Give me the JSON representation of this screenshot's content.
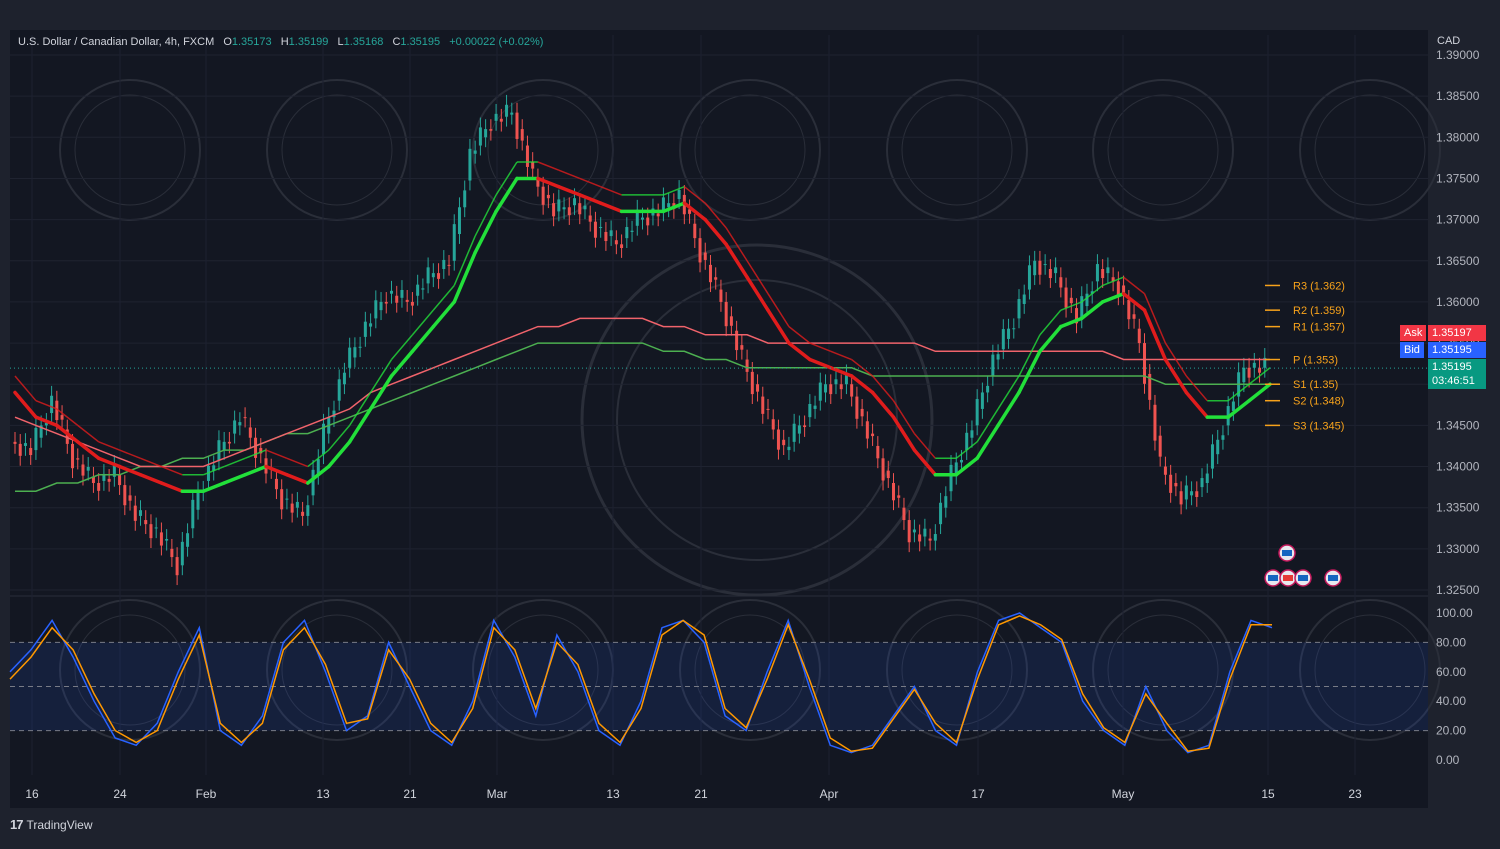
{
  "header": {
    "symbol": "U.S. Dollar / Canadian Dollar, 4h, FXCM",
    "o_label": "O",
    "o": "1.35173",
    "h_label": "H",
    "h": "1.35199",
    "l_label": "L",
    "l": "1.35168",
    "c_label": "C",
    "c": "1.35195",
    "change": "+0.00022 (+0.02%)"
  },
  "currency": "CAD",
  "footer": {
    "brand": "TradingView",
    "logo_text": "17"
  },
  "quote": {
    "ask_label": "Ask",
    "ask": "1.35197",
    "bid_label": "Bid",
    "bid": "1.35195",
    "last": "1.35195",
    "countdown": "03:46:51"
  },
  "colors": {
    "bg": "#131722",
    "up": "#26a69a",
    "down": "#ef5350",
    "ema_up": "#22e03a",
    "ema_down": "#e01c1c",
    "ma_long_red": "#f0636b",
    "ma_long_green": "#4caf50",
    "stoch_k": "#2962ff",
    "stoch_d": "#ff9800",
    "pivot": "#f7a21b"
  },
  "watermark_icon": "ab-shield-logo-icon",
  "event_icons": [
    "us-flag-icon",
    "lightning-icon",
    "ca-flag-icon",
    "us-flag-icon",
    "us-flag-icon"
  ],
  "chart_data": [
    {
      "type": "line",
      "name": "price",
      "y_ticks": [
        "1.39000",
        "1.38500",
        "1.38000",
        "1.37500",
        "1.37000",
        "1.36500",
        "1.36000",
        "1.35500",
        "1.35000",
        "1.34500",
        "1.34000",
        "1.33500",
        "1.33000",
        "1.32500"
      ],
      "x_ticks": [
        "16",
        "24",
        "Feb",
        "13",
        "21",
        "Mar",
        "13",
        "21",
        "Apr",
        "17",
        "May",
        "15",
        "23"
      ],
      "ylim": [
        1.325,
        1.39
      ],
      "pivots": [
        {
          "label": "R3 (1.362)",
          "value": 1.362
        },
        {
          "label": "R2 (1.359)",
          "value": 1.359
        },
        {
          "label": "R1 (1.357)",
          "value": 1.357
        },
        {
          "label": "P (1.353)",
          "value": 1.353
        },
        {
          "label": "S1 (1.35)",
          "value": 1.35
        },
        {
          "label": "S2 (1.348)",
          "value": 1.348
        },
        {
          "label": "S3 (1.345)",
          "value": 1.345
        }
      ],
      "close_series": [
        1.343,
        1.342,
        1.348,
        1.341,
        1.338,
        1.339,
        1.334,
        1.332,
        1.328,
        1.337,
        1.342,
        1.346,
        1.341,
        1.336,
        1.334,
        1.344,
        1.352,
        1.357,
        1.361,
        1.36,
        1.363,
        1.365,
        1.378,
        1.382,
        1.383,
        1.375,
        1.371,
        1.372,
        1.369,
        1.367,
        1.37,
        1.371,
        1.373,
        1.366,
        1.36,
        1.353,
        1.347,
        1.342,
        1.346,
        1.35,
        1.35,
        1.344,
        1.338,
        1.332,
        1.331,
        1.339,
        1.345,
        1.353,
        1.358,
        1.365,
        1.363,
        1.358,
        1.364,
        1.362,
        1.355,
        1.34,
        1.336,
        1.338,
        1.345,
        1.352,
        1.352
      ],
      "ema_fast": [
        1.349,
        1.346,
        1.345,
        1.343,
        1.341,
        1.34,
        1.339,
        1.338,
        1.337,
        1.337,
        1.338,
        1.339,
        1.34,
        1.339,
        1.338,
        1.34,
        1.343,
        1.347,
        1.351,
        1.354,
        1.357,
        1.36,
        1.366,
        1.371,
        1.375,
        1.375,
        1.374,
        1.373,
        1.372,
        1.371,
        1.371,
        1.371,
        1.372,
        1.37,
        1.367,
        1.363,
        1.359,
        1.355,
        1.353,
        1.352,
        1.351,
        1.349,
        1.346,
        1.342,
        1.339,
        1.339,
        1.341,
        1.345,
        1.349,
        1.354,
        1.357,
        1.358,
        1.36,
        1.361,
        1.359,
        1.353,
        1.349,
        1.346,
        1.346,
        1.348,
        1.35
      ],
      "ma_long_red": [
        1.346,
        1.345,
        1.344,
        1.343,
        1.342,
        1.341,
        1.34,
        1.34,
        1.34,
        1.34,
        1.341,
        1.342,
        1.343,
        1.344,
        1.345,
        1.346,
        1.347,
        1.349,
        1.35,
        1.351,
        1.352,
        1.353,
        1.354,
        1.355,
        1.356,
        1.357,
        1.357,
        1.358,
        1.358,
        1.358,
        1.358,
        1.357,
        1.357,
        1.356,
        1.356,
        1.356,
        1.355,
        1.355,
        1.355,
        1.355,
        1.355,
        1.355,
        1.355,
        1.355,
        1.354,
        1.354,
        1.354,
        1.354,
        1.354,
        1.354,
        1.354,
        1.354,
        1.354,
        1.353,
        1.353,
        1.353,
        1.353,
        1.353,
        1.353,
        1.353,
        1.353
      ],
      "ma_long_green": [
        1.337,
        1.337,
        1.338,
        1.338,
        1.339,
        1.339,
        1.34,
        1.34,
        1.341,
        1.341,
        1.342,
        1.342,
        1.343,
        1.344,
        1.344,
        1.345,
        1.346,
        1.347,
        1.348,
        1.349,
        1.35,
        1.351,
        1.352,
        1.353,
        1.354,
        1.355,
        1.355,
        1.355,
        1.355,
        1.355,
        1.355,
        1.354,
        1.354,
        1.353,
        1.353,
        1.352,
        1.352,
        1.352,
        1.352,
        1.352,
        1.352,
        1.351,
        1.351,
        1.351,
        1.351,
        1.351,
        1.351,
        1.351,
        1.351,
        1.351,
        1.351,
        1.351,
        1.351,
        1.351,
        1.351,
        1.35,
        1.35,
        1.35,
        1.35,
        1.35,
        1.35
      ]
    },
    {
      "type": "line",
      "name": "stochastic",
      "y_ticks": [
        "100.00",
        "80.00",
        "60.00",
        "40.00",
        "20.00",
        "0.00"
      ],
      "ylim": [
        0,
        100
      ],
      "bands": [
        20,
        50,
        80
      ],
      "series": [
        {
          "values": [
            60,
            75,
            95,
            70,
            40,
            15,
            10,
            25,
            60,
            90,
            20,
            10,
            30,
            80,
            95,
            60,
            20,
            30,
            80,
            50,
            20,
            10,
            40,
            95,
            70,
            30,
            85,
            60,
            20,
            10,
            40,
            90,
            95,
            80,
            30,
            20,
            60,
            95,
            50,
            10,
            5,
            10,
            30,
            50,
            20,
            10,
            60,
            95,
            100,
            90,
            80,
            40,
            20,
            10,
            50,
            20,
            5,
            10,
            60,
            95,
            90
          ]
        },
        {
          "values": [
            55,
            70,
            90,
            75,
            45,
            20,
            12,
            20,
            55,
            85,
            25,
            12,
            25,
            75,
            90,
            65,
            25,
            28,
            75,
            55,
            25,
            12,
            35,
            90,
            75,
            35,
            80,
            65,
            25,
            12,
            35,
            85,
            95,
            85,
            35,
            22,
            55,
            92,
            55,
            15,
            6,
            8,
            28,
            48,
            25,
            12,
            55,
            92,
            98,
            92,
            82,
            45,
            22,
            12,
            45,
            25,
            6,
            8,
            55,
            92,
            92
          ]
        }
      ]
    }
  ]
}
